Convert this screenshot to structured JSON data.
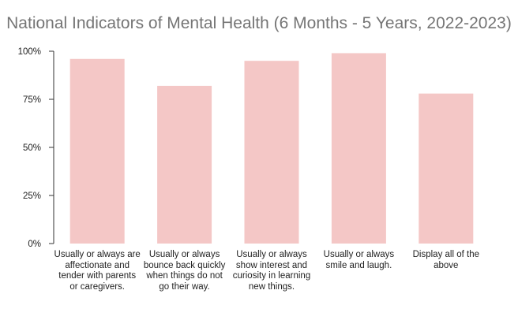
{
  "chart_data": {
    "type": "bar",
    "title": "National Indicators of Mental Health (6 Months - 5 Years, 2022-2023)",
    "categories": [
      "Usually or always are affectionate and tender with parents or caregivers.",
      "Usually or always bounce back quickly when things do not go their way.",
      "Usually or always show interest and curiosity in learning new things.",
      "Usually or always smile and laugh.",
      "Display all of the above"
    ],
    "values": [
      96,
      82,
      95,
      99,
      78
    ],
    "ylim": [
      0,
      100
    ],
    "yticks": [
      0,
      25,
      50,
      75,
      100
    ],
    "ytick_labels": [
      "0%",
      "25%",
      "50%",
      "75%",
      "100%"
    ],
    "xlabel": "",
    "ylabel": "",
    "bar_color": "#f4c7c6",
    "grid": false,
    "legend": "none"
  }
}
